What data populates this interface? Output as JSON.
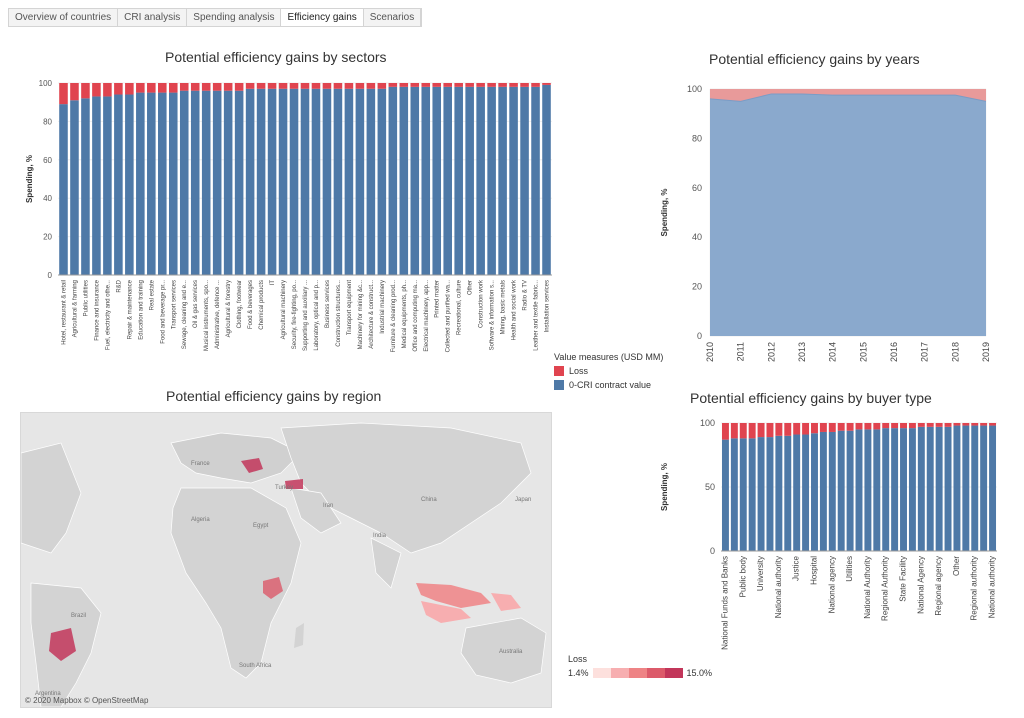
{
  "tabs": [
    {
      "label": "Overview of countries"
    },
    {
      "label": "CRI analysis"
    },
    {
      "label": "Spending analysis"
    },
    {
      "label": "Efficiency gains",
      "active": true
    },
    {
      "label": "Scenarios"
    }
  ],
  "colors": {
    "loss": "#e0444f",
    "base": "#4e79a7",
    "loss_area": "#e89a9a",
    "base_area": "#8aa9cd"
  },
  "legend": {
    "title": "Value measures (USD MM)",
    "items": [
      {
        "label": "Loss",
        "color": "#e0444f"
      },
      {
        "label": "0-CRI contract value",
        "color": "#4e79a7"
      }
    ]
  },
  "loss_legend": {
    "title": "Loss",
    "min": "1.4%",
    "max": "15.0%",
    "colors": [
      "#fde0dd",
      "#f7aeb0",
      "#ee8385",
      "#dc5a6a",
      "#c2365a"
    ]
  },
  "map": {
    "title": "Potential efficiency gains by region",
    "attribution": "© 2020 Mapbox © OpenStreetMap",
    "labels": [
      "France",
      "Turkey",
      "Iran",
      "China",
      "Japan",
      "Algeria",
      "Egypt",
      "India",
      "Brazil",
      "Argentina",
      "Australia",
      "South Africa"
    ]
  },
  "chart_data": [
    {
      "type": "bar",
      "title": "Potential efficiency gains by sectors",
      "ylabel": "Spending, %",
      "ylim": [
        0,
        100
      ],
      "yticks": [
        0,
        20,
        40,
        60,
        80,
        100
      ],
      "categories": [
        "Hotel, restaurant & retail",
        "Agricultural & farming",
        "Public utilities",
        "Finance and insurance",
        "Fuel, electricity and othe...",
        "R&D",
        "Repair & maintenance",
        "Education and training",
        "Real estate",
        "Food and beverage pr...",
        "Transport services",
        "Sewage, cleaning and e...",
        "Oil & gas services",
        "Musical instruments, spo...",
        "Administrative, defence ...",
        "Agricultural & forestry",
        "Clothing, footwear",
        "Food & beverages",
        "Chemical products",
        "IT",
        "Agricultural machinery",
        "Security, fire-fighting, po...",
        "Supporting and auxiliary ...",
        "Laboratory, optical and p...",
        "Business services",
        "Construction structures...",
        "Transport equipment",
        "Machinery for mining &c...",
        "Architecture & construct...",
        "Industrial machinery",
        "Furniture & cleaning prod...",
        "Medical equipments, ph...",
        "Office and computing ma...",
        "Electrical machinery, app...",
        "Printed matter",
        "Collected and purified wa...",
        "Recreational, culture",
        "Other",
        "Construction work",
        "Software & information s...",
        "Mining, basic metals",
        "Health and social work",
        "Radio & TV",
        "Leather and textile fabric...",
        "Installation services"
      ],
      "series": [
        {
          "name": "0-CRI contract value",
          "values": [
            89,
            91,
            92,
            93,
            93,
            94,
            94,
            95,
            95,
            95,
            95,
            96,
            96,
            96,
            96,
            96,
            96,
            97,
            97,
            97,
            97,
            97,
            97,
            97,
            97,
            97,
            97,
            97,
            97,
            97,
            98,
            98,
            98,
            98,
            98,
            98,
            98,
            98,
            98,
            98,
            98,
            98,
            98,
            98,
            99
          ]
        },
        {
          "name": "Loss",
          "values": [
            11,
            9,
            8,
            7,
            7,
            6,
            6,
            5,
            5,
            5,
            5,
            4,
            4,
            4,
            4,
            4,
            4,
            3,
            3,
            3,
            3,
            3,
            3,
            3,
            3,
            3,
            3,
            3,
            3,
            3,
            2,
            2,
            2,
            2,
            2,
            2,
            2,
            2,
            2,
            2,
            2,
            2,
            2,
            2,
            1
          ]
        }
      ]
    },
    {
      "type": "area",
      "title": "Potential efficiency gains by years",
      "ylabel": "Spending, %",
      "ylim": [
        0,
        100
      ],
      "yticks": [
        0,
        20,
        40,
        60,
        80,
        100
      ],
      "x": [
        "2010",
        "2011",
        "2012",
        "2013",
        "2014",
        "2015",
        "2016",
        "2017",
        "2018",
        "2019"
      ],
      "series": [
        {
          "name": "0-CRI contract value",
          "values": [
            96,
            95,
            98,
            98,
            97.5,
            97.5,
            97.5,
            97.5,
            97.5,
            95
          ]
        },
        {
          "name": "Loss",
          "values": [
            4,
            5,
            2,
            2,
            2.5,
            2.5,
            2.5,
            2.5,
            2.5,
            5
          ]
        }
      ]
    },
    {
      "type": "bar",
      "title": "Potential efficiency gains by buyer type",
      "ylabel": "Spending, %",
      "ylim": [
        0,
        100
      ],
      "yticks": [
        0,
        50,
        100
      ],
      "categories": [
        "National Funds and Banks",
        "",
        "Public body",
        "",
        "University",
        "",
        "National authority",
        "",
        "Justice",
        "",
        "Hospital",
        "",
        "National agency",
        "",
        "Utilities",
        "",
        "National Authority",
        "",
        "Regional Authority",
        "",
        "State Facility",
        "",
        "National Agency",
        "",
        "Regional agency",
        "",
        "Other",
        "",
        "Regional authority",
        "",
        "National authority"
      ],
      "series": [
        {
          "name": "0-CRI contract value",
          "values": [
            87,
            88,
            88,
            88,
            89,
            89,
            90,
            90,
            91,
            91,
            92,
            93,
            93,
            94,
            94,
            95,
            95,
            95,
            96,
            96,
            96,
            96,
            97,
            97,
            97,
            97,
            98,
            98,
            98,
            98,
            98
          ]
        },
        {
          "name": "Loss",
          "values": [
            13,
            12,
            12,
            12,
            11,
            11,
            10,
            10,
            9,
            9,
            8,
            7,
            7,
            6,
            6,
            5,
            5,
            5,
            4,
            4,
            4,
            4,
            3,
            3,
            3,
            3,
            2,
            2,
            2,
            2,
            2
          ]
        }
      ]
    }
  ]
}
